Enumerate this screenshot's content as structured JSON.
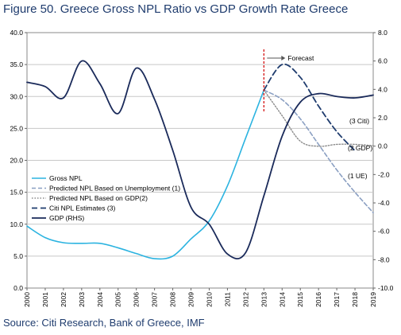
{
  "figure": {
    "title": "Figure 50. Greece Gross NPL Ratio vs GDP Growth Rate Greece",
    "source": "Source: Citi Research, Bank of Greece, IMF"
  },
  "colors": {
    "gross_npl": "#2bb3e0",
    "pred_unemployment": "#8a9fc2",
    "pred_gdp": "#8c8c8c",
    "citi_estimates": "#1f3c6e",
    "gdp": "#1a2a5a",
    "forecast_marker": "#d00000",
    "grid": "#c8c8c8"
  },
  "chart_data": {
    "type": "line",
    "title": "",
    "x": [
      2000,
      2001,
      2002,
      2003,
      2004,
      2005,
      2006,
      2007,
      2008,
      2009,
      2010,
      2011,
      2012,
      2013,
      2014,
      2015,
      2016,
      2017,
      2018,
      2019
    ],
    "x_tick_labels": [
      "2000",
      "2001",
      "2002",
      "2003",
      "2004",
      "2005",
      "2006",
      "2007",
      "2008",
      "2009",
      "2010",
      "2011",
      "2012",
      "2013",
      "2014",
      "2015",
      "2016",
      "2017",
      "2018",
      "2019"
    ],
    "y_left": {
      "min": 0,
      "max": 40,
      "ticks": [
        0,
        5,
        10,
        15,
        20,
        25,
        30,
        35,
        40
      ],
      "tick_labels": [
        "0.0",
        "5.0",
        "10.0",
        "15.0",
        "20.0",
        "25.0",
        "30.0",
        "35.0",
        "40.0"
      ]
    },
    "y_right": {
      "min": -10,
      "max": 8,
      "ticks": [
        -10,
        -8,
        -6,
        -4,
        -2,
        0,
        2,
        4,
        6,
        8
      ],
      "tick_labels": [
        "-10.0",
        "-8.0",
        "-6.0",
        "-4.0",
        "-2.0",
        "0.0",
        "2.0",
        "4.0",
        "6.0",
        "8.0"
      ]
    },
    "grid": true,
    "legend_position": "left-middle",
    "series": [
      {
        "key": "gross_npl",
        "name": "Gross NPL",
        "axis": "left",
        "style": "solid",
        "x": [
          2000,
          2001,
          2002,
          2003,
          2004,
          2005,
          2006,
          2007,
          2008,
          2009,
          2010,
          2011,
          2012,
          2013
        ],
        "values": [
          9.7,
          7.9,
          7.1,
          7.0,
          7.0,
          6.3,
          5.4,
          4.6,
          5.0,
          7.7,
          10.5,
          16.0,
          23.5,
          31.0
        ]
      },
      {
        "key": "pred_unemployment",
        "name": "Predicted NPL Based on Unemployment (1)",
        "axis": "left",
        "style": "dash",
        "x": [
          2013,
          2014,
          2015,
          2016,
          2017,
          2018,
          2019
        ],
        "values": [
          31.0,
          29.5,
          26.5,
          22.5,
          18.5,
          15.0,
          11.8
        ]
      },
      {
        "key": "pred_gdp",
        "name": "Predicted NPL Based on GDP(2)",
        "axis": "left",
        "style": "dot",
        "x": [
          2013,
          2014,
          2015,
          2016,
          2017,
          2018,
          2019
        ],
        "values": [
          31.0,
          27.0,
          23.0,
          22.2,
          22.5,
          22.5,
          22.3
        ]
      },
      {
        "key": "citi_estimates",
        "name": "Citi NPL Estimates (3)",
        "axis": "left",
        "style": "longdash",
        "x": [
          2013,
          2014,
          2015,
          2016,
          2017,
          2018
        ],
        "values": [
          31.0,
          35.0,
          33.0,
          28.5,
          24.5,
          21.5
        ]
      },
      {
        "key": "gdp",
        "name": "GDP (RHS)",
        "axis": "right",
        "style": "solid",
        "x": [
          2000,
          2001,
          2002,
          2003,
          2004,
          2005,
          2006,
          2007,
          2008,
          2009,
          2010,
          2011,
          2012,
          2013,
          2014,
          2015,
          2016,
          2017,
          2018,
          2019
        ],
        "values": [
          4.5,
          4.2,
          3.4,
          6.0,
          4.4,
          2.3,
          5.5,
          3.3,
          -0.3,
          -4.3,
          -5.5,
          -7.6,
          -7.5,
          -3.5,
          0.7,
          3.1,
          3.7,
          3.5,
          3.4,
          3.6
        ]
      }
    ],
    "annotations": {
      "forecast": "Forecast",
      "label_citi": "(3 Citi)",
      "label_gdp": "(2 GDP)",
      "label_ue": "(1 UE)"
    }
  }
}
